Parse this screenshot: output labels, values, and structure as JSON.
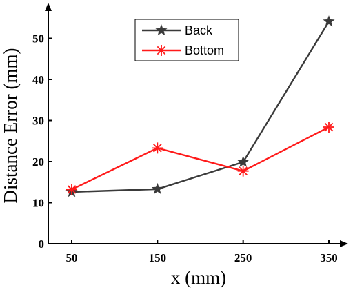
{
  "chart_data": {
    "type": "line",
    "title": "",
    "xlabel": "x (mm)",
    "ylabel": "Distance Error (mm)",
    "x": [
      50,
      150,
      250,
      350
    ],
    "x_ticks": [
      "50",
      "150",
      "250",
      "350"
    ],
    "y_ticks": [
      "0",
      "10",
      "20",
      "30",
      "40",
      "50"
    ],
    "xlim": [
      0,
      400
    ],
    "ylim": [
      0,
      58
    ],
    "grid": false,
    "legend_position": "top-center",
    "series": [
      {
        "name": "Back",
        "values": [
          12.6,
          13.3,
          19.9,
          54.1
        ],
        "color": "#3a3a3a",
        "marker": "star"
      },
      {
        "name": "Bottom",
        "values": [
          13.2,
          23.3,
          17.7,
          28.4
        ],
        "color": "#ff1a1a",
        "marker": "asterisk"
      }
    ]
  }
}
